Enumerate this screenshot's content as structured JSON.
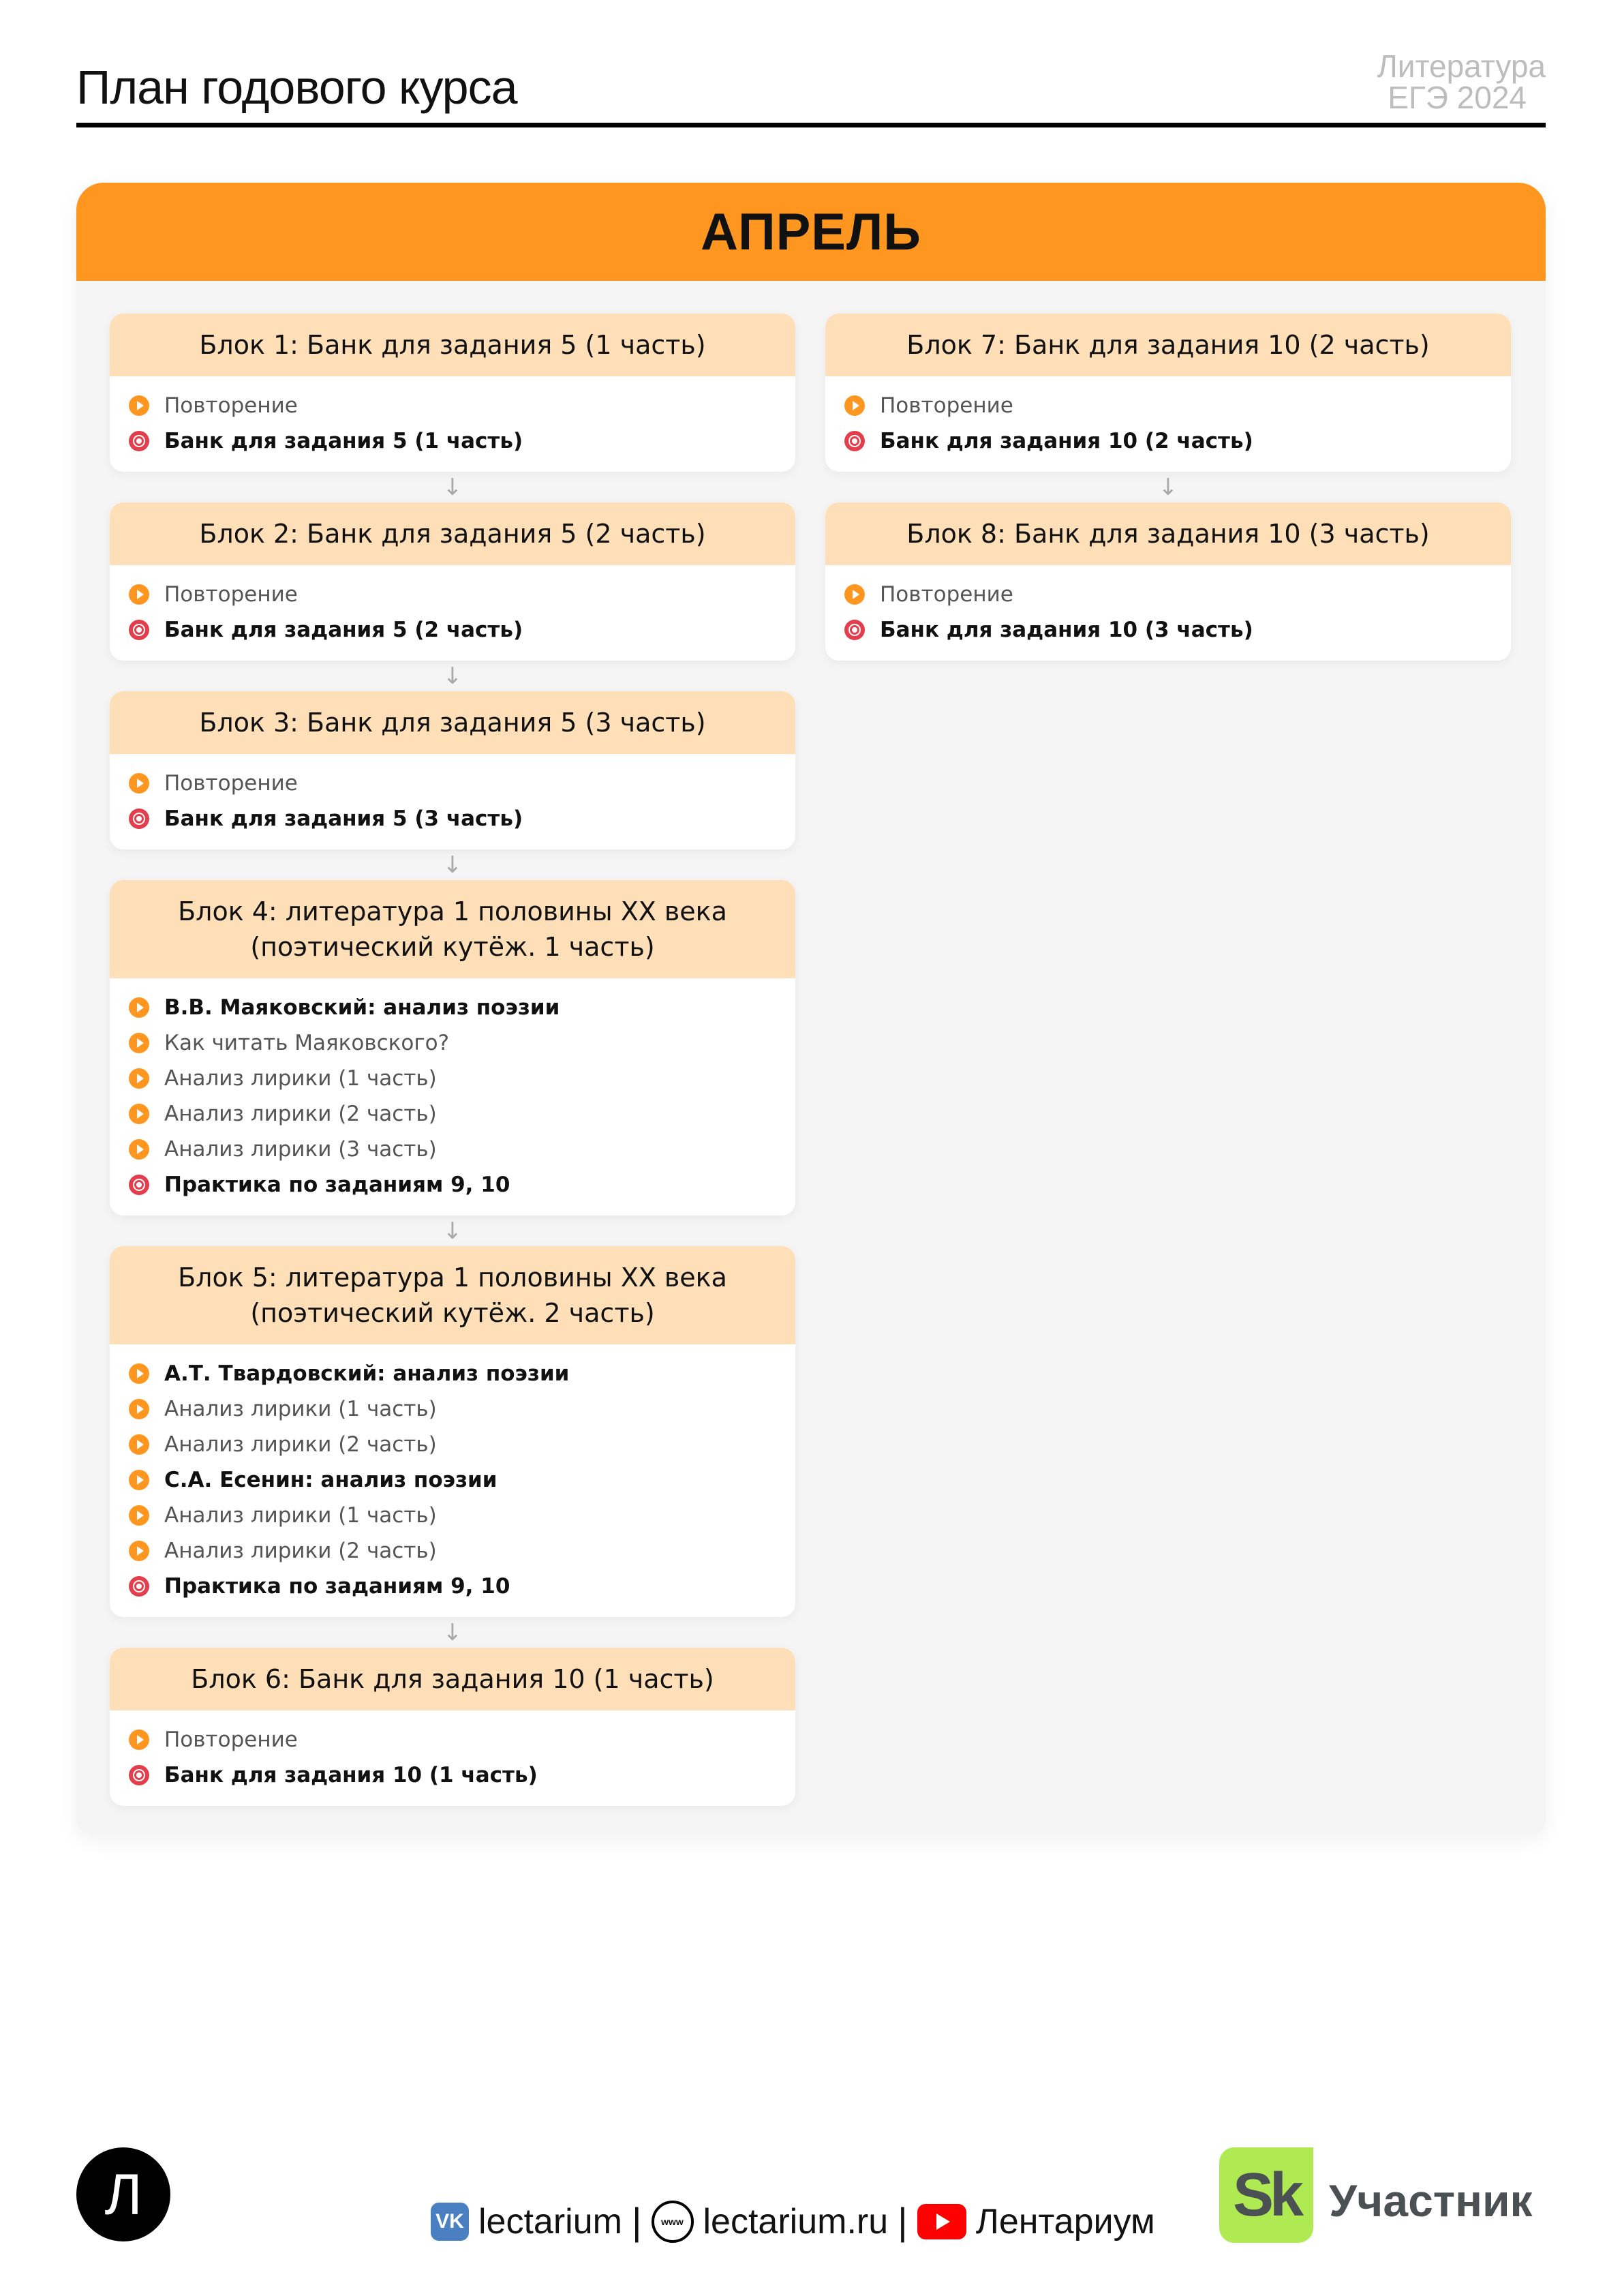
{
  "header": {
    "title": "План годового курса",
    "subject": "Литература",
    "exam": "ЕГЭ 2024"
  },
  "month": "АПРЕЛЬ",
  "columns": {
    "left": [
      {
        "title": "Блок 1: Банк для задания 5 (1 часть)",
        "items": [
          {
            "icon": "play-icon",
            "text": "Повторение",
            "style": "light"
          },
          {
            "icon": "live-icon",
            "text": "Банк для задания 5 (1 часть)",
            "style": "bold"
          }
        ]
      },
      {
        "title": "Блок 2: Банк для задания 5 (2 часть)",
        "items": [
          {
            "icon": "play-icon",
            "text": "Повторение",
            "style": "light"
          },
          {
            "icon": "live-icon",
            "text": "Банк для задания 5 (2 часть)",
            "style": "bold"
          }
        ]
      },
      {
        "title": "Блок 3: Банк для задания 5 (3 часть)",
        "items": [
          {
            "icon": "play-icon",
            "text": "Повторение",
            "style": "light"
          },
          {
            "icon": "live-icon",
            "text": "Банк для задания 5 (3 часть)",
            "style": "bold"
          }
        ]
      },
      {
        "title": "Блок 4: литература 1 половины XX века (поэтический кутёж. 1 часть)",
        "items": [
          {
            "icon": "play-icon",
            "text": "В.В. Маяковский: анализ поэзии",
            "style": "bold"
          },
          {
            "icon": "play-icon",
            "text": "Как читать Маяковского?",
            "style": "light"
          },
          {
            "icon": "play-icon",
            "text": "Анализ лирики (1 часть)",
            "style": "light"
          },
          {
            "icon": "play-icon",
            "text": "Анализ лирики (2 часть)",
            "style": "light"
          },
          {
            "icon": "play-icon",
            "text": "Анализ лирики (3 часть)",
            "style": "light"
          },
          {
            "icon": "live-icon",
            "text": "Практика по заданиям 9, 10",
            "style": "bold"
          }
        ]
      },
      {
        "title": "Блок 5: литература 1 половины XX века (поэтический кутёж. 2 часть)",
        "items": [
          {
            "icon": "play-icon",
            "text": "А.Т. Твардовский: анализ поэзии",
            "style": "bold"
          },
          {
            "icon": "play-icon",
            "text": "Анализ лирики (1 часть)",
            "style": "light"
          },
          {
            "icon": "play-icon",
            "text": "Анализ лирики (2 часть)",
            "style": "light"
          },
          {
            "icon": "play-icon",
            "text": "С.А. Есенин: анализ поэзии",
            "style": "bold"
          },
          {
            "icon": "play-icon",
            "text": "Анализ лирики (1 часть)",
            "style": "light"
          },
          {
            "icon": "play-icon",
            "text": "Анализ лирики (2 часть)",
            "style": "light"
          },
          {
            "icon": "live-icon",
            "text": "Практика по заданиям 9, 10",
            "style": "bold"
          }
        ]
      },
      {
        "title": "Блок 6: Банк для задания 10 (1 часть)",
        "items": [
          {
            "icon": "play-icon",
            "text": "Повторение",
            "style": "light"
          },
          {
            "icon": "live-icon",
            "text": "Банк для задания 10 (1 часть)",
            "style": "bold"
          }
        ]
      }
    ],
    "right": [
      {
        "title": "Блок 7: Банк для задания 10 (2 часть)",
        "items": [
          {
            "icon": "play-icon",
            "text": "Повторение",
            "style": "light"
          },
          {
            "icon": "live-icon",
            "text": "Банк для задания 10 (2 часть)",
            "style": "bold"
          }
        ]
      },
      {
        "title": "Блок 8: Банк для задания 10 (3 часть)",
        "items": [
          {
            "icon": "play-icon",
            "text": "Повторение",
            "style": "light"
          },
          {
            "icon": "live-icon",
            "text": "Банк для задания 10 (3 часть)",
            "style": "bold"
          }
        ]
      }
    ]
  },
  "footer": {
    "logo_letter": "Л",
    "vk": "lectarium",
    "site": "lectarium.ru",
    "youtube": "Лентариум",
    "www": "www",
    "sk_logo": "Sk",
    "sk_label": "Участник"
  },
  "colors": {
    "accent": "#ff961f",
    "card_header": "#ffdfb8",
    "live": "#e43d4b",
    "sk": "#b0ea52"
  }
}
